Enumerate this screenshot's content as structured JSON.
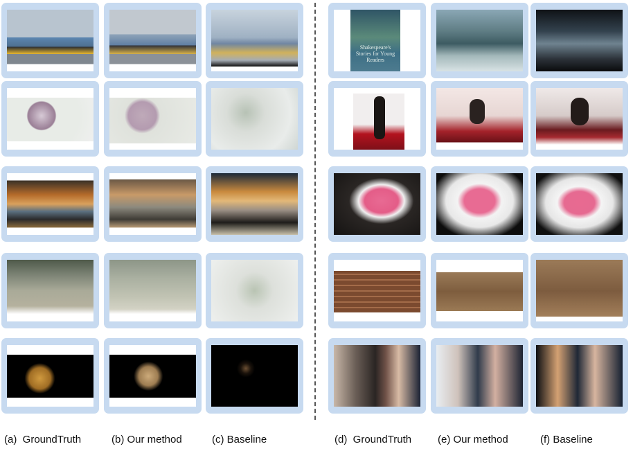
{
  "captions": {
    "a": "(a)  GroundTruth",
    "b": "(b) Our method",
    "c": "(c) Baseline",
    "d": "(d)  GroundTruth",
    "e": "(e) Our method",
    "f": "(f) Baseline"
  },
  "panel_thumbnail_text": {
    "d_row1": "Shakespeare's Stories for Young Readers"
  }
}
